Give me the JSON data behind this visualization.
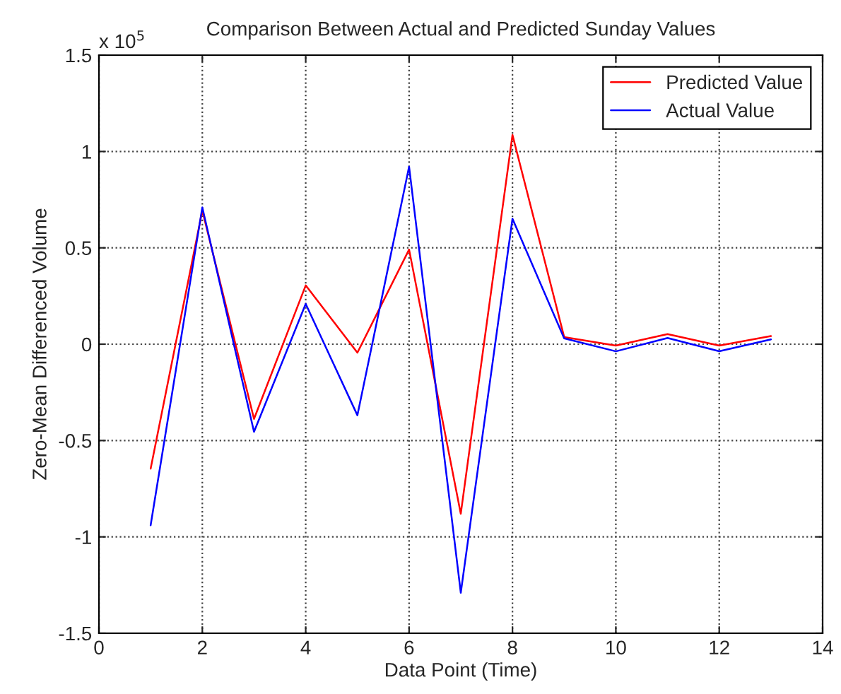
{
  "chart_data": {
    "type": "line",
    "title": "Comparison Between Actual and Predicted Sunday Values",
    "xlabel": "Data Point (Time)",
    "ylabel": "Zero-Mean Differenced Volume",
    "annotations": [
      "x 10$^{5}$"
    ],
    "x": [
      1,
      2,
      3,
      4,
      5,
      6,
      7,
      8,
      9,
      10,
      11,
      12,
      13
    ],
    "series": [
      {
        "name": "Predicted Value",
        "color": "#ff0000",
        "values": [
          -0.646,
          0.693,
          -0.388,
          0.305,
          -0.044,
          0.491,
          -0.88,
          1.086,
          0.037,
          -0.007,
          0.052,
          -0.007,
          0.042
        ]
      },
      {
        "name": "Actual Value",
        "color": "#0000ff",
        "values": [
          -0.94,
          0.71,
          -0.455,
          0.209,
          -0.369,
          0.921,
          -1.29,
          0.651,
          0.03,
          -0.037,
          0.032,
          -0.037,
          0.025
        ]
      }
    ],
    "xlim": [
      0,
      14
    ],
    "xticks": [
      0,
      2,
      4,
      6,
      8,
      10,
      12,
      14
    ],
    "ylim": [
      -1.5,
      1.5
    ],
    "yticks": [
      -1.5,
      -1,
      -0.5,
      0,
      0.5,
      1,
      1.5
    ],
    "grid": true,
    "legend": "top right",
    "marker": "none",
    "line_style": "solid"
  }
}
